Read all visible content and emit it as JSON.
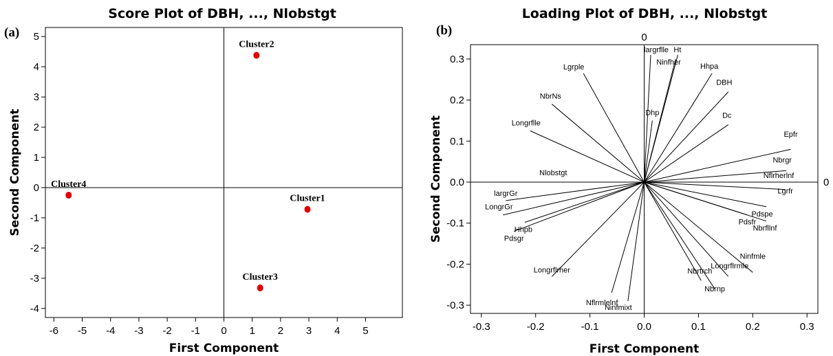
{
  "chart_data": [
    {
      "type": "scatter",
      "panel_label": "(a)",
      "title": "Score Plot of DBH, ..., Nlobstgt",
      "xlabel": "First Component",
      "ylabel": "Second Component",
      "xlim": [
        -6.3,
        6.3
      ],
      "ylim": [
        -4.3,
        5.3
      ],
      "xticks": [
        -6,
        -5,
        -4,
        -3,
        -2,
        -1,
        0,
        1,
        2,
        3,
        4,
        5
      ],
      "yticks": [
        -4,
        -3,
        -2,
        -1,
        0,
        1,
        2,
        3,
        4,
        5
      ],
      "reference_lines": {
        "x": 0,
        "y": 0
      },
      "point_color": "#e00000",
      "points": [
        {
          "label": "Cluster1",
          "x": 2.95,
          "y": -0.72
        },
        {
          "label": "Cluster2",
          "x": 1.15,
          "y": 4.38
        },
        {
          "label": "Cluster3",
          "x": 1.28,
          "y": -3.32
        },
        {
          "label": "Cluster4",
          "x": -5.48,
          "y": -0.25
        }
      ]
    },
    {
      "type": "scatter",
      "subtype": "loading-vectors",
      "panel_label": "(b)",
      "title": "Loading Plot of DBH, ..., Nlobstgt",
      "xlabel": "First Component",
      "ylabel": "Second Component",
      "xlim": [
        -0.32,
        0.32
      ],
      "ylim": [
        -0.32,
        0.335
      ],
      "xticks": [
        -0.3,
        -0.2,
        -0.1,
        0.0,
        0.1,
        0.2,
        0.3
      ],
      "yticks": [
        -0.3,
        -0.2,
        -0.1,
        0.0,
        0.1,
        0.2,
        0.3
      ],
      "reference_lines": {
        "x": 0,
        "y": 0
      },
      "reference_labels": {
        "vertical": "0",
        "horizontal": "0"
      },
      "loadings": [
        {
          "label": "largrflle",
          "x": 0.012,
          "y": 0.31
        },
        {
          "label": "Ht",
          "x": 0.062,
          "y": 0.31
        },
        {
          "label": "Ninfher",
          "x": 0.058,
          "y": 0.3
        },
        {
          "label": "Lgrple",
          "x": -0.112,
          "y": 0.265
        },
        {
          "label": "Hhpa",
          "x": 0.125,
          "y": 0.265
        },
        {
          "label": "DBH",
          "x": 0.155,
          "y": 0.22
        },
        {
          "label": "NbrNs",
          "x": -0.17,
          "y": 0.19
        },
        {
          "label": "Dhp",
          "x": 0.015,
          "y": 0.15
        },
        {
          "label": "Dc",
          "x": 0.155,
          "y": 0.14
        },
        {
          "label": "Longrflle",
          "x": -0.21,
          "y": 0.125
        },
        {
          "label": "Epfr",
          "x": 0.27,
          "y": 0.08
        },
        {
          "label": "Nbrgr",
          "x": 0.262,
          "y": 0.028
        },
        {
          "label": "Nflrherlnf",
          "x": 0.255,
          "y": 0.0
        },
        {
          "label": "Nlobstgt",
          "x": -0.165,
          "y": 0.0
        },
        {
          "label": "largrGr",
          "x": -0.255,
          "y": -0.045
        },
        {
          "label": "LongrGr",
          "x": -0.26,
          "y": -0.08
        },
        {
          "label": "Lgrfr",
          "x": 0.26,
          "y": -0.018
        },
        {
          "label": "Pdspe",
          "x": 0.225,
          "y": -0.06
        },
        {
          "label": "Pdsfr",
          "x": 0.19,
          "y": -0.08
        },
        {
          "label": "Nbrfllnf",
          "x": 0.225,
          "y": -0.095
        },
        {
          "label": "Hhpb",
          "x": -0.22,
          "y": -0.098
        },
        {
          "label": "Pdsgr",
          "x": -0.24,
          "y": -0.12
        },
        {
          "label": "Longrflrher",
          "x": -0.17,
          "y": -0.23
        },
        {
          "label": "Nbrtrch",
          "x": 0.105,
          "y": -0.24
        },
        {
          "label": "Longrflrmle",
          "x": 0.155,
          "y": -0.23
        },
        {
          "label": "Ninfmle",
          "x": 0.2,
          "y": -0.22
        },
        {
          "label": "Nbrnp",
          "x": 0.13,
          "y": -0.26
        },
        {
          "label": "Nflrmlelnf",
          "x": -0.06,
          "y": -0.27
        },
        {
          "label": "Ninfmixt",
          "x": -0.03,
          "y": -0.29
        }
      ]
    }
  ]
}
